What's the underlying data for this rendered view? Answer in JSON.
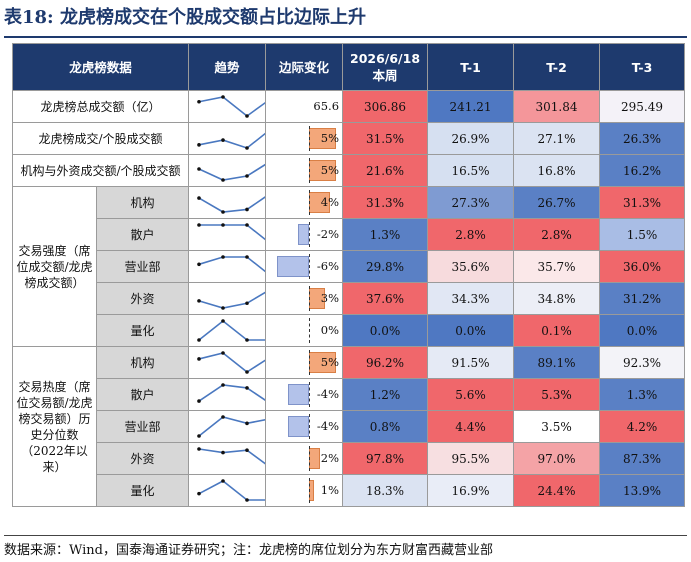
{
  "title": "表18: 龙虎榜成交在个股成交额占比边际上升",
  "header": [
    "龙虎榜数据",
    "趋势",
    "边际变化",
    "2026/6/18\n本周",
    "T-1",
    "T-2",
    "T-3"
  ],
  "rows": [
    {
      "label": "龙虎榜总成交额（亿）",
      "trend": [
        1.0,
        1.3,
        0.1,
        1.2
      ],
      "change": {
        "text": "65.6"
      },
      "values": [
        "306.86",
        "241.21",
        "301.84",
        "295.49"
      ],
      "colors": [
        "#f0676b",
        "#4f78c2",
        "#f4969a",
        "#f4f2f8"
      ]
    },
    {
      "label": "龙虎榜成交/个股成交额",
      "trend": [
        0.3,
        0.6,
        0.1,
        1.3
      ],
      "change": {
        "text": "5%",
        "value": 5
      },
      "values": [
        "31.5%",
        "26.9%",
        "27.1%",
        "26.3%"
      ],
      "colors": [
        "#f0676b",
        "#d6e0f1",
        "#dbe3f2",
        "#5a80c5"
      ]
    },
    {
      "label": "机构与外资成交额/个股成交额",
      "trend": [
        1.2,
        0.1,
        0.5,
        2.0
      ],
      "change": {
        "text": "5%",
        "value": 5
      },
      "values": [
        "21.6%",
        "16.5%",
        "16.8%",
        "16.2%"
      ],
      "colors": [
        "#f0676b",
        "#d6e0f1",
        "#dbe3f2",
        "#5a80c5"
      ]
    },
    {
      "group": "交易强度（席位成交额/龙虎榜成交额）",
      "label": "机构",
      "trend": [
        1.1,
        0.0,
        0.2,
        1.5
      ],
      "change": {
        "text": "4%",
        "value": 4
      },
      "values": [
        "31.3%",
        "27.3%",
        "26.7%",
        "31.3%"
      ],
      "colors": [
        "#f0676b",
        "#7f9bd2",
        "#5a80c5",
        "#f0676b"
      ]
    },
    {
      "label": "散户",
      "trend": [
        1.5,
        1.5,
        1.5,
        0.2
      ],
      "change": {
        "text": "-2%",
        "value": -2
      },
      "values": [
        "1.3%",
        "2.8%",
        "2.8%",
        "1.5%"
      ],
      "colors": [
        "#5a80c5",
        "#f0676b",
        "#f0676b",
        "#a9bde5"
      ]
    },
    {
      "label": "营业部",
      "trend": [
        1.0,
        1.5,
        1.5,
        0.2
      ],
      "change": {
        "text": "-6%",
        "value": -6
      },
      "values": [
        "29.8%",
        "35.6%",
        "35.7%",
        "36.0%"
      ],
      "colors": [
        "#5a80c5",
        "#f7dbdd",
        "#fbe8e9",
        "#f0676b"
      ]
    },
    {
      "label": "外资",
      "trend": [
        0.7,
        0.4,
        0.6,
        1.2
      ],
      "change": {
        "text": "3%",
        "value": 3
      },
      "values": [
        "37.6%",
        "34.3%",
        "34.8%",
        "31.2%"
      ],
      "colors": [
        "#f0676b",
        "#e1e7f4",
        "#eceef6",
        "#5a80c5"
      ]
    },
    {
      "label": "量化",
      "trend": [
        0.0,
        1.0,
        0.0,
        0.0
      ],
      "change": {
        "text": "0%",
        "value": 0
      },
      "values": [
        "0.0%",
        "0.0%",
        "0.1%",
        "0.0%"
      ],
      "colors": [
        "#4f78c2",
        "#4f78c2",
        "#f0676b",
        "#4f78c2"
      ]
    },
    {
      "group": "交易热度（席位交易额/龙虎榜交易额）历史分位数（2022年以来）",
      "label": "机构",
      "trend": [
        1.1,
        1.6,
        0.0,
        1.3
      ],
      "change": {
        "text": "5%",
        "value": 5
      },
      "values": [
        "96.2%",
        "91.5%",
        "89.1%",
        "92.3%"
      ],
      "colors": [
        "#f0676b",
        "#e5eaf5",
        "#5a80c5",
        "#f3f3f8"
      ]
    },
    {
      "label": "散户",
      "trend": [
        0.2,
        1.3,
        1.1,
        0.0
      ],
      "change": {
        "text": "-4%",
        "value": -4
      },
      "values": [
        "1.2%",
        "5.6%",
        "5.3%",
        "1.3%"
      ],
      "colors": [
        "#5a80c5",
        "#f0676b",
        "#f0676b",
        "#5a80c5"
      ]
    },
    {
      "label": "营业部",
      "trend": [
        0.0,
        1.2,
        0.8,
        1.1
      ],
      "change": {
        "text": "-4%",
        "value": -4
      },
      "values": [
        "0.8%",
        "4.4%",
        "3.5%",
        "4.2%"
      ],
      "colors": [
        "#5a80c5",
        "#f0676b",
        "#ffffff",
        "#f0676b"
      ]
    },
    {
      "label": "外资",
      "trend": [
        1.6,
        1.3,
        1.5,
        0.0
      ],
      "change": {
        "text": "2%",
        "value": 2
      },
      "values": [
        "97.8%",
        "95.5%",
        "97.0%",
        "87.3%"
      ],
      "colors": [
        "#f0676b",
        "#f7dfe1",
        "#f4a3a6",
        "#5a80c5"
      ]
    },
    {
      "label": "量化",
      "trend": [
        0.4,
        1.2,
        0.0,
        0.0
      ],
      "change": {
        "text": "1%",
        "value": 1
      },
      "values": [
        "18.3%",
        "16.9%",
        "24.4%",
        "13.9%"
      ],
      "colors": [
        "#dbe3f2",
        "#e9edf7",
        "#f0676b",
        "#5a80c5"
      ]
    }
  ],
  "footer": "数据来源：Wind，国泰海通证券研究；注：龙虎榜的席位划分为东方财富西藏营业部"
}
